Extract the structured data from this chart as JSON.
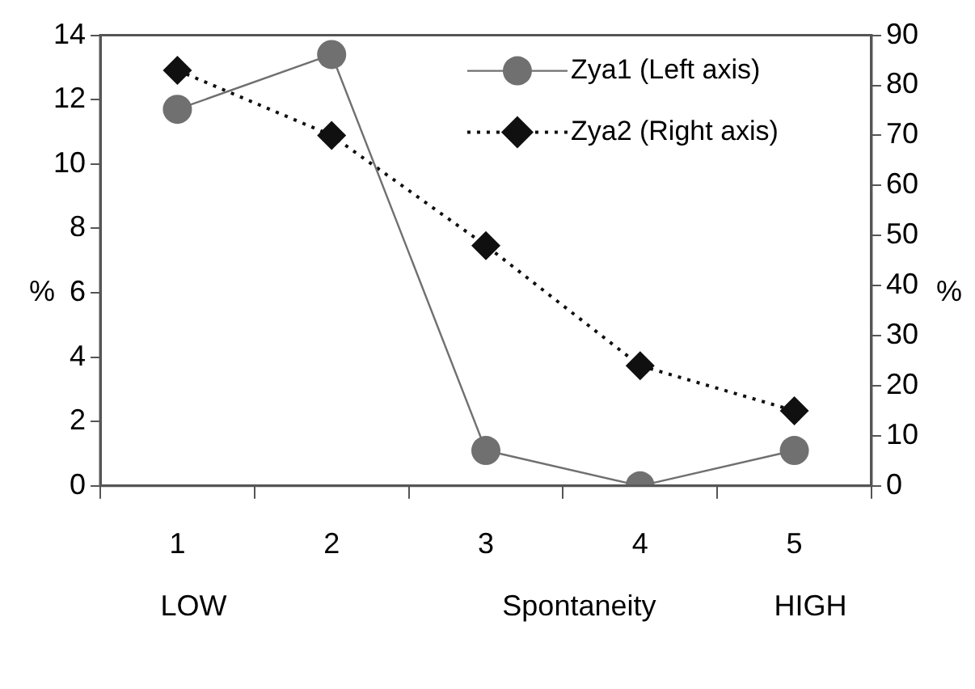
{
  "chart_data": {
    "type": "line",
    "xlabel": "Spontaneity",
    "ylabel": "%",
    "y2label": "%",
    "categories": [
      "1",
      "2",
      "3",
      "4",
      "5"
    ],
    "series": [
      {
        "name": "Zya1 (Left axis)",
        "color": "#707070",
        "values": [
          11.7,
          13.4,
          1.1,
          0,
          1.1
        ],
        "marker": "circle",
        "line_style": "solid"
      },
      {
        "name": "Zya2 (Right axis)",
        "color": "#101010",
        "values": [
          83,
          70,
          48,
          24,
          15
        ],
        "marker": "diamond",
        "line_style": "dotted",
        "axis": "y2"
      }
    ],
    "ylim": [
      0,
      14
    ],
    "yticks": [
      0,
      2,
      4,
      6,
      8,
      10,
      12,
      14
    ],
    "y2lim": [
      0,
      90
    ],
    "y2ticks": [
      0,
      10,
      20,
      30,
      40,
      50,
      60,
      70,
      80,
      90
    ],
    "annotations": [
      "LOW",
      "HIGH"
    ],
    "grid": false,
    "legend": "top right"
  }
}
